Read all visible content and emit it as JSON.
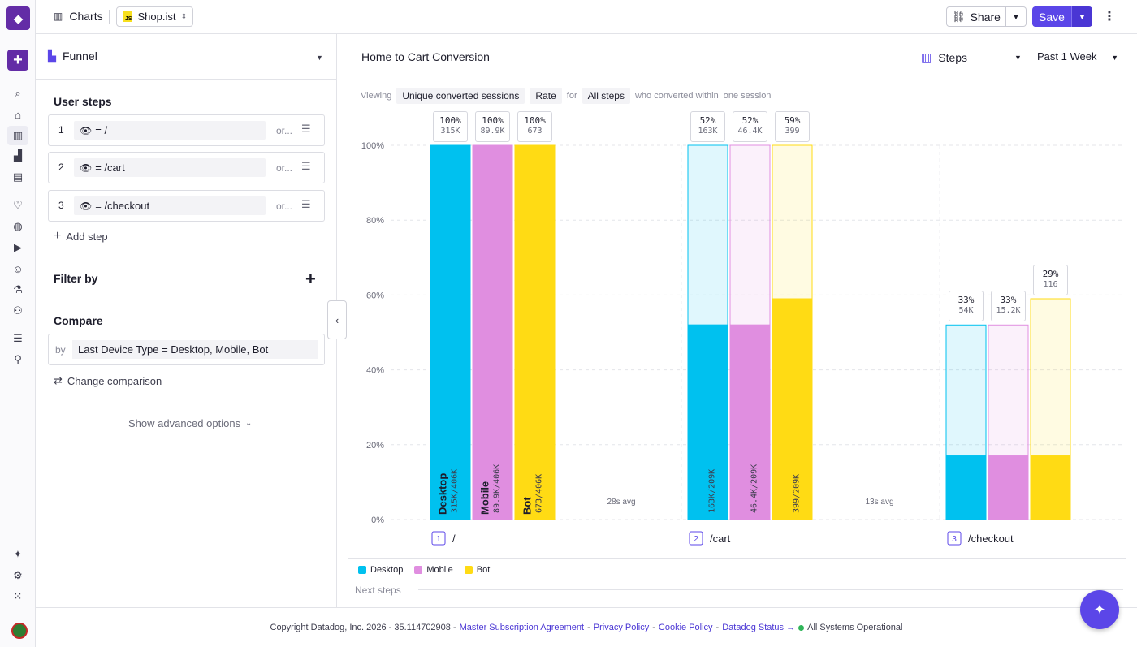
{
  "topbar": {
    "section": "Charts",
    "app_name": "Shop.ist",
    "share_label": "Share",
    "save_label": "Save"
  },
  "panel": {
    "viz_type": "Funnel",
    "user_steps_title": "User steps",
    "steps": [
      {
        "num": "1",
        "value": "= /",
        "or": "or..."
      },
      {
        "num": "2",
        "value": "= /cart",
        "or": "or..."
      },
      {
        "num": "3",
        "value": "= /checkout",
        "or": "or..."
      }
    ],
    "add_step": "Add step",
    "filter_title": "Filter by",
    "compare_title": "Compare",
    "compare_by": "by",
    "compare_value": "Last Device Type = Desktop, Mobile, Bot",
    "change_comparison": "Change comparison",
    "advanced": "Show advanced options"
  },
  "main": {
    "title": "Home to Cart Conversion",
    "display_mode": "Steps",
    "period": "Past 1 Week",
    "viewing_label": "Viewing",
    "metric": "Unique converted sessions",
    "rate": "Rate",
    "for_label": "for",
    "steps_scope": "All steps",
    "within_label": "who converted within",
    "within_value": "one session",
    "next_steps": "Next steps"
  },
  "colors": {
    "desktop": "#00c1ef",
    "mobile": "#e08ee0",
    "bot": "#ffdb14",
    "accent": "#5b46e8"
  },
  "chart_data": {
    "type": "bar",
    "ylim": [
      0,
      100
    ],
    "yticks": [
      "0%",
      "20%",
      "40%",
      "60%",
      "80%",
      "100%"
    ],
    "categories": [
      "/",
      "/cart",
      "/checkout"
    ],
    "category_numbers": [
      "1",
      "2",
      "3"
    ],
    "avg_times": [
      "28s avg",
      "13s avg"
    ],
    "series": [
      {
        "name": "Desktop",
        "color": "#00c1ef",
        "values": [
          100,
          52,
          17
        ],
        "prev": [
          100,
          100,
          52
        ],
        "pct_labels": [
          "100%",
          "52%",
          "33%"
        ],
        "count_labels": [
          "315K",
          "163K",
          "54K"
        ],
        "ratio_labels": [
          "315K/406K",
          "163K/209K",
          ""
        ]
      },
      {
        "name": "Mobile",
        "color": "#e08ee0",
        "values": [
          100,
          52,
          17
        ],
        "prev": [
          100,
          100,
          52
        ],
        "pct_labels": [
          "100%",
          "52%",
          "33%"
        ],
        "count_labels": [
          "89.9K",
          "46.4K",
          "15.2K"
        ],
        "ratio_labels": [
          "89.9K/406K",
          "46.4K/209K",
          ""
        ]
      },
      {
        "name": "Bot",
        "color": "#ffdb14",
        "values": [
          100,
          59,
          17
        ],
        "prev": [
          100,
          100,
          59
        ],
        "pct_labels": [
          "100%",
          "59%",
          "29%"
        ],
        "count_labels": [
          "673",
          "399",
          "116"
        ],
        "ratio_labels": [
          "673/406K",
          "399/209K",
          ""
        ]
      }
    ]
  },
  "footer": {
    "copyright": "Copyright Datadog, Inc. 2026 - 35.114702908 -",
    "msa": "Master Subscription Agreement",
    "privacy": "Privacy Policy",
    "cookie": "Cookie Policy",
    "status": "Datadog Status →",
    "operational": "All Systems Operational"
  }
}
